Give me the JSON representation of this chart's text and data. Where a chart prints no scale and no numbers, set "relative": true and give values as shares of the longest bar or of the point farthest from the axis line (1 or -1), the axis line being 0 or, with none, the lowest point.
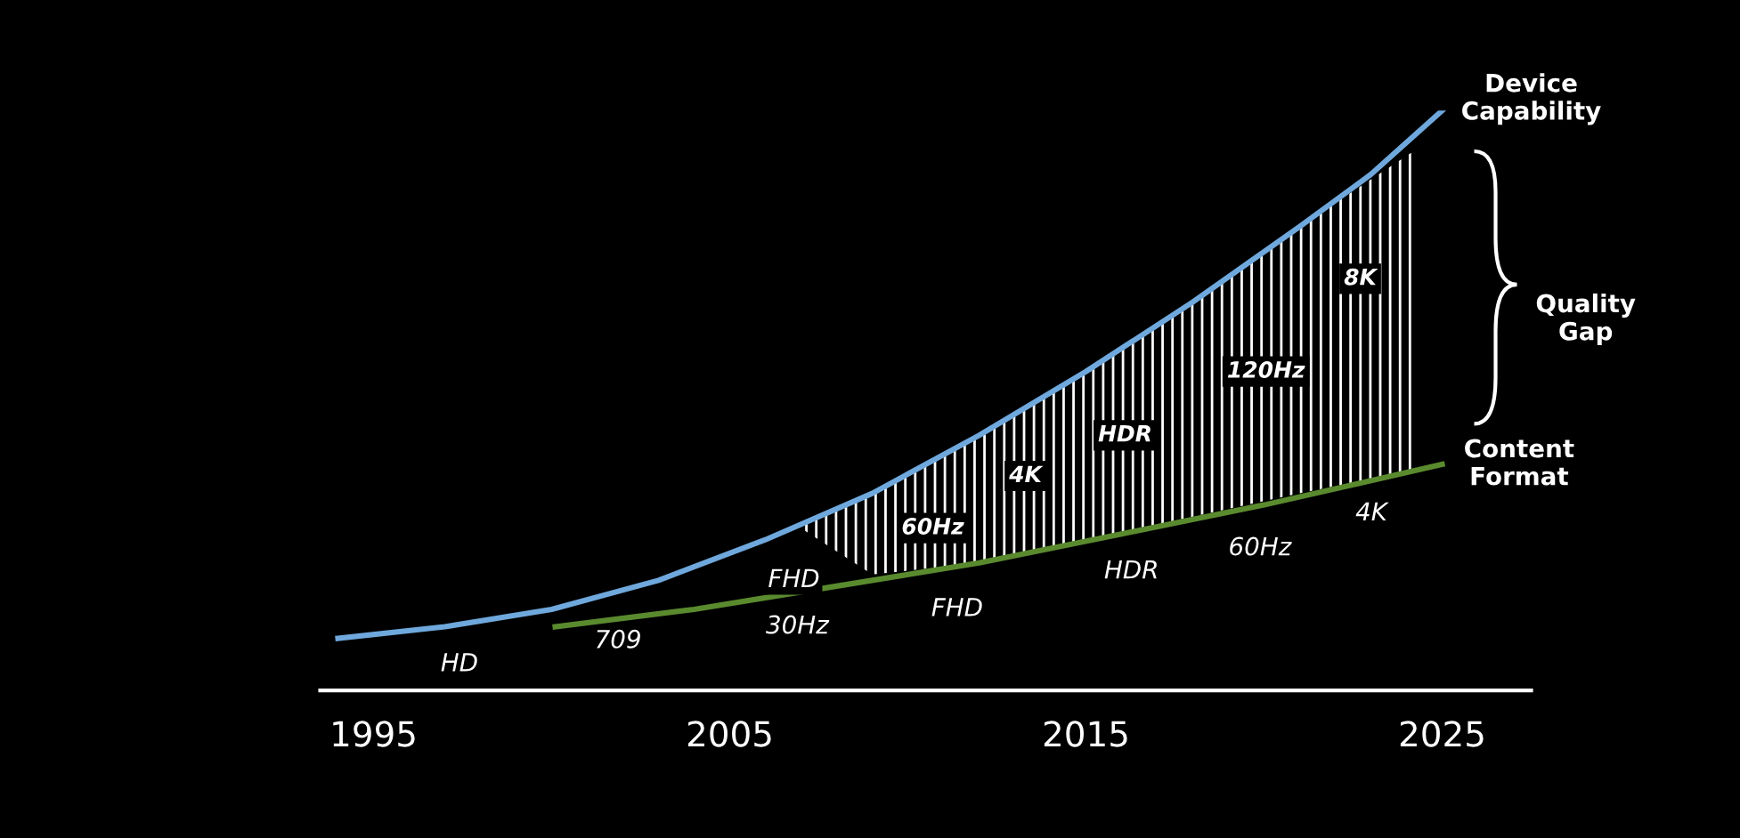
{
  "chart_data": {
    "type": "line",
    "relative": true,
    "xlim": [
      1993.5,
      2027.5
    ],
    "xticks": [
      1995,
      2005,
      2015,
      2025
    ],
    "grid": false,
    "legend": false,
    "marker": "none",
    "line_style": "solid",
    "series": [
      {
        "color": "#6fa8dc",
        "x": [
          1994.0,
          1997.0,
          2000.0,
          2003.0,
          2006.0,
          2009.0,
          2012.0,
          2015.0,
          2018.0,
          2021.0,
          2023.0,
          2025.0
        ],
        "values": [
          0.09,
          0.11,
          0.14,
          0.19,
          0.26,
          0.34,
          0.44,
          0.55,
          0.67,
          0.8,
          0.89,
          1.0
        ]
      },
      {
        "color": "#5a8a2e",
        "x": [
          2000.1,
          2004.0,
          2008.0,
          2012.0,
          2016.0,
          2020.0,
          2025.0
        ],
        "values": [
          0.11,
          0.14,
          0.18,
          0.22,
          0.27,
          0.32,
          0.39
        ]
      },
      {
        "type": "area",
        "color": "#ffffff",
        "x": [
          2007.0,
          2009.0,
          2012.0,
          2015.0,
          2018.0,
          2021.0,
          2024.2
        ],
        "lower": [
          0.28,
          0.2,
          0.22,
          0.26,
          0.3,
          0.34,
          0.38
        ],
        "upper": [
          0.29,
          0.34,
          0.44,
          0.55,
          0.67,
          0.8,
          0.93
        ],
        "values": [
          null,
          null,
          null,
          null,
          null,
          null,
          null
        ]
      }
    ],
    "annotations": [
      "HD",
      "709",
      "30Hz",
      {
        "text": "FHD",
        "x": 2006.8,
        "y": 0.19
      },
      "FHD",
      "HDR",
      "60Hz",
      "4K",
      {
        "text": "60Hz",
        "x": 2010.7,
        "y": 0.28
      },
      {
        "text": "4K",
        "x": 2013.3,
        "y": 0.37
      },
      {
        "text": "HDR",
        "x": 2016.1,
        "y": 0.44
      },
      "120Hz",
      {
        "text": "8K",
        "x": 2022.7,
        "y": 0.71
      },
      "Device\nCapability",
      "Quality\nGap",
      "Content\nFormat"
    ]
  }
}
